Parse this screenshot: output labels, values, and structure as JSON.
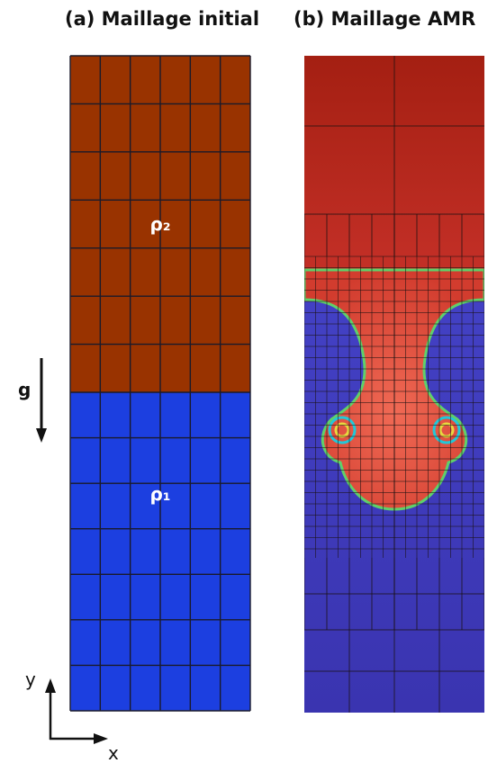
{
  "panels": [
    {
      "title": "(a) Maillage initial",
      "upper_label": "ρ₂",
      "lower_label": "ρ₁"
    },
    {
      "title": "(b) Maillage AMR"
    }
  ],
  "gravity_label": "g",
  "axes": {
    "y": "y",
    "x": "x"
  }
}
